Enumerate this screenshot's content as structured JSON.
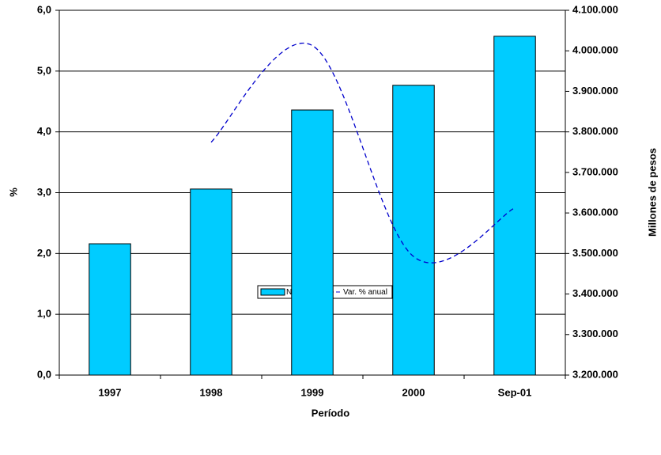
{
  "chart_data": {
    "type": "bar-line",
    "x_label": "Período",
    "y_label": "%",
    "y2_label": "Millones de pesos",
    "categories": [
      "1997",
      "1998",
      "1999",
      "2000",
      "Sep-01"
    ],
    "series": [
      {
        "name": "Nivel",
        "type": "bar",
        "axis": "y2",
        "color": "#00ccff",
        "values": [
          3524000,
          3659000,
          3854000,
          3915000,
          4036000
        ]
      },
      {
        "name": "Var. % anual",
        "type": "line",
        "axis": "y",
        "color": "#0000cc",
        "values": [
          null,
          3.83,
          5.42,
          1.95,
          2.75
        ]
      }
    ],
    "ylim": [
      0,
      6
    ],
    "yticks": [
      {
        "value": 0,
        "label": "0,0"
      },
      {
        "value": 1,
        "label": "1,0"
      },
      {
        "value": 2,
        "label": "2,0"
      },
      {
        "value": 3,
        "label": "3,0"
      },
      {
        "value": 4,
        "label": "4,0"
      },
      {
        "value": 5,
        "label": "5,0"
      },
      {
        "value": 6,
        "label": "6,0"
      }
    ],
    "y2lim": [
      3200000,
      4100000
    ],
    "y2ticks": [
      {
        "value": 3200000,
        "label": "3.200.000"
      },
      {
        "value": 3300000,
        "label": "3.300.000"
      },
      {
        "value": 3400000,
        "label": "3.400.000"
      },
      {
        "value": 3500000,
        "label": "3.500.000"
      },
      {
        "value": 3600000,
        "label": "3.600.000"
      },
      {
        "value": 3700000,
        "label": "3.700.000"
      },
      {
        "value": 3800000,
        "label": "3.800.000"
      },
      {
        "value": 3900000,
        "label": "3.900.000"
      },
      {
        "value": 4000000,
        "label": "4.000.000"
      },
      {
        "value": 4100000,
        "label": "4.100.000"
      }
    ],
    "grid": true
  }
}
